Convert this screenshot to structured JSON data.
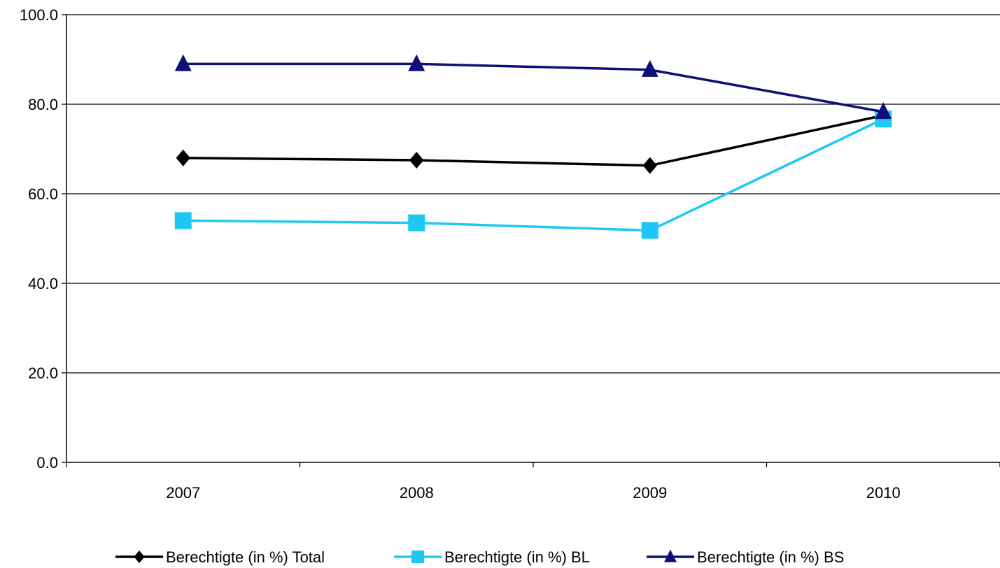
{
  "chart_data": {
    "type": "line",
    "categories": [
      "2007",
      "2008",
      "2009",
      "2010"
    ],
    "ylim": [
      0,
      100
    ],
    "yticks": [
      "0.0",
      "20.0",
      "40.0",
      "60.0",
      "80.0",
      "100.0"
    ],
    "grid": true,
    "legend_position": "bottom",
    "series": [
      {
        "name": "Berechtigte (in %) Total",
        "marker": "diamond",
        "color": "#000000",
        "values": [
          68.0,
          67.5,
          66.3,
          77.5
        ]
      },
      {
        "name": "Berechtigte (in %) BL",
        "marker": "square",
        "color": "#1EC8F5",
        "values": [
          54.0,
          53.5,
          51.8,
          76.7
        ]
      },
      {
        "name": "Berechtigte (in %) BS",
        "marker": "triangle",
        "color": "#0F0F7A",
        "values": [
          89.0,
          89.0,
          87.7,
          78.3
        ]
      }
    ]
  }
}
